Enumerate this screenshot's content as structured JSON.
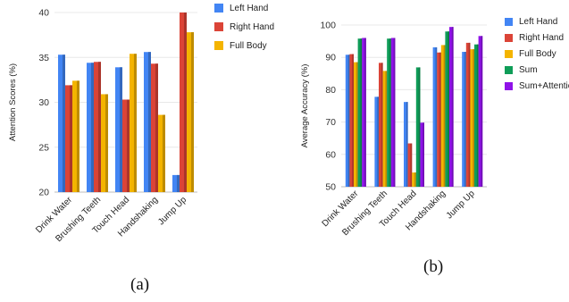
{
  "chart_data": [
    {
      "type": "bar",
      "caption": "(a)",
      "ylabel": "Attention Scores (%)",
      "ylim": [
        20,
        40
      ],
      "yticks": [
        20,
        25,
        30,
        35,
        40
      ],
      "grid": true,
      "legend_position": "right",
      "categories": [
        "Drink Water",
        "Brushing Teeth",
        "Touch Head",
        "Handshaking",
        "Jump Up"
      ],
      "series": [
        {
          "name": "Left Hand",
          "color": "#4285F4",
          "values": [
            35.3,
            34.4,
            33.9,
            35.6,
            21.9
          ]
        },
        {
          "name": "Right Hand",
          "color": "#DB4437",
          "values": [
            31.9,
            34.5,
            30.3,
            34.3,
            40.0
          ]
        },
        {
          "name": "Full Body",
          "color": "#F4B400",
          "values": [
            32.4,
            30.9,
            35.4,
            28.6,
            37.8
          ]
        }
      ]
    },
    {
      "type": "bar",
      "caption": "(b)",
      "ylabel": "Average Accuracy (%)",
      "ylim": [
        50,
        100
      ],
      "yticks": [
        50,
        60,
        70,
        80,
        90,
        100
      ],
      "grid": true,
      "legend_position": "right",
      "categories": [
        "Drink Water",
        "Brushing Teeth",
        "Touch Head",
        "Handshaking",
        "Jump Up"
      ],
      "series": [
        {
          "name": "Left Hand",
          "color": "#4285F4",
          "values": [
            90.8,
            77.8,
            76.2,
            93.1,
            91.7
          ]
        },
        {
          "name": "Right Hand",
          "color": "#DB4437",
          "values": [
            91.0,
            88.3,
            63.4,
            91.5,
            94.5
          ]
        },
        {
          "name": "Full Body",
          "color": "#F4B400",
          "values": [
            88.5,
            85.8,
            54.4,
            93.8,
            92.5
          ]
        },
        {
          "name": "Sum",
          "color": "#0F9D58",
          "values": [
            95.8,
            95.8,
            86.9,
            98.0,
            94.0
          ]
        },
        {
          "name": "Sum+Attention",
          "color": "#8F12E8",
          "values": [
            96.0,
            96.0,
            69.8,
            99.4,
            96.6
          ]
        }
      ]
    }
  ]
}
